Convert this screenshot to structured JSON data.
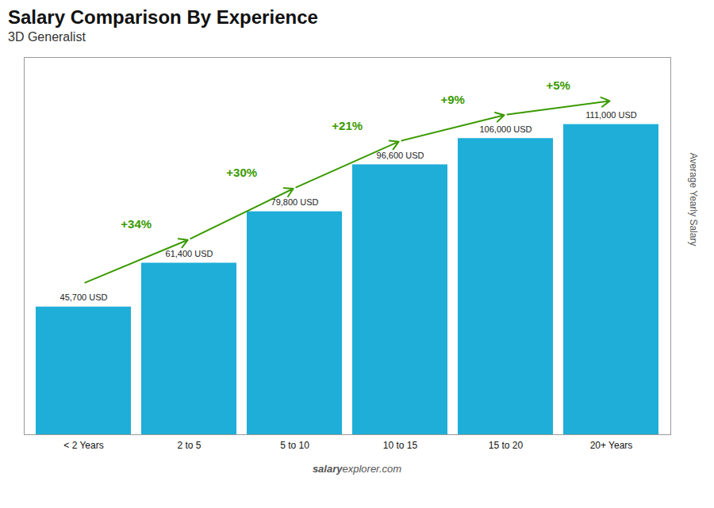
{
  "chart_data": {
    "type": "bar",
    "title": "Salary Comparison By Experience",
    "subtitle": "3D Generalist",
    "categories": [
      "< 2 Years",
      "2 to 5",
      "5 to 10",
      "10 to 15",
      "15 to 20",
      "20+ Years"
    ],
    "values": [
      45700,
      61400,
      79800,
      96600,
      106000,
      111000
    ],
    "value_labels": [
      "45,700 USD",
      "61,400 USD",
      "79,800 USD",
      "96,600 USD",
      "106,000 USD",
      "111,000 USD"
    ],
    "data_labels": true,
    "color": "#1eaed8",
    "ylabel": "Average Yearly Salary",
    "ylim": [
      0,
      135000
    ],
    "yticks": [],
    "tick_labels": "x",
    "grid": false,
    "annotations": [
      {
        "text": "+34%",
        "from": "< 2 Years",
        "to": "2 to 5"
      },
      {
        "text": "+30%",
        "from": "2 to 5",
        "to": "5 to 10"
      },
      {
        "text": "+21%",
        "from": "5 to 10",
        "to": "10 to 15"
      },
      {
        "text": "+9%",
        "from": "10 to 15",
        "to": "15 to 20"
      },
      {
        "text": "+5%",
        "from": "15 to 20",
        "to": "20+ Years"
      }
    ],
    "watermark": [
      "salary",
      "explorer.com"
    ]
  }
}
